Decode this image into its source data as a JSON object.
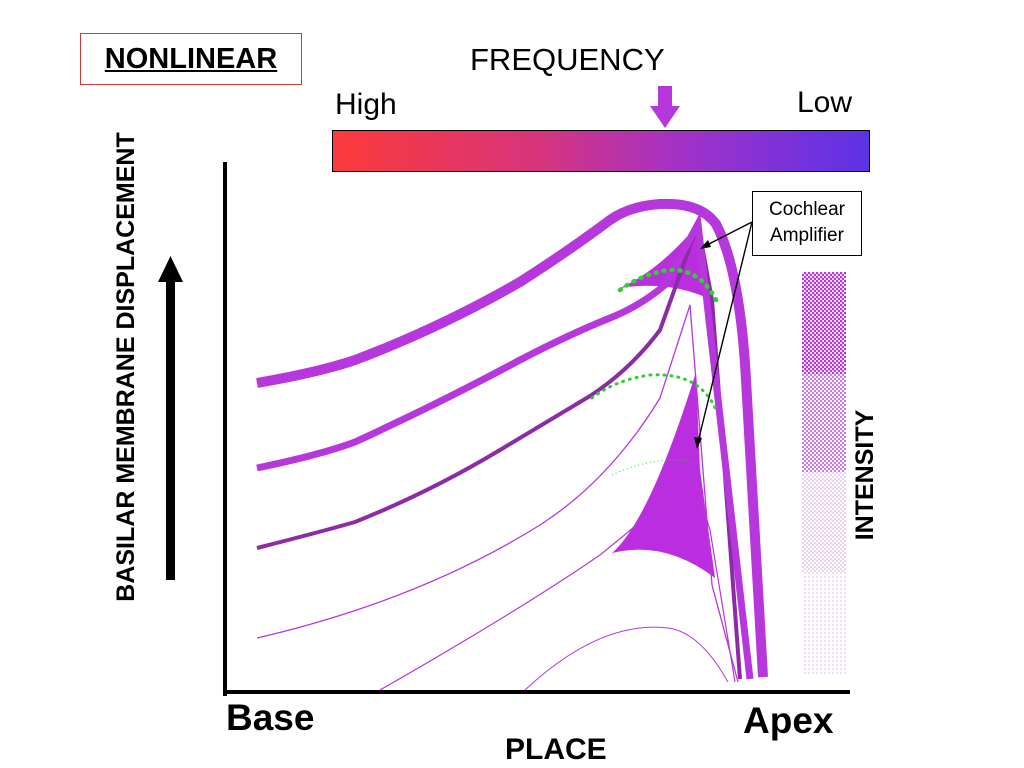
{
  "title": "NONLINEAR",
  "frequency": {
    "title": "FREQUENCY",
    "high_label": "High",
    "low_label": "Low"
  },
  "callout": {
    "line1": "Cochlear",
    "line2": "Amplifier"
  },
  "axes": {
    "y_label": "BASILAR MEMBRANE DISPLACEMENT",
    "x_start_label": "Base",
    "x_end_label": "Apex",
    "x_label": "PLACE"
  },
  "intensity_label": "INTENSITY",
  "colors": {
    "curve": "#b637dc",
    "curve_dark": "#8d2aa6",
    "amplifier_fill": "#bb2ee0",
    "passive_peak": "#2fcf2f",
    "gradient_high": "#fb3a3a",
    "gradient_low": "#5c32e6",
    "title_border": "#d23a3a",
    "axis": "#000000"
  }
}
